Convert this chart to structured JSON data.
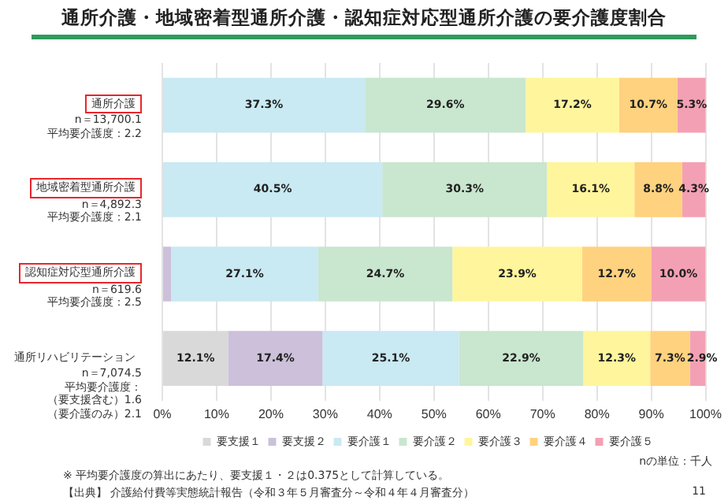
{
  "chart_data": {
    "type": "bar",
    "orientation": "horizontal",
    "stacked": true,
    "title": "通所介護・地域密着型通所介護・認知症対応型通所介護の要介護度割合",
    "categories": [
      "通所介護",
      "地域密着型通所介護",
      "認知症対応型通所介護",
      "通所リハビリテーション"
    ],
    "series": [
      {
        "name": "要支援１",
        "color": "#d9d9d9",
        "values": [
          null,
          null,
          null,
          12.1
        ],
        "value_labels": [
          null,
          null,
          null,
          "12.1%"
        ]
      },
      {
        "name": "要支援２",
        "color": "#ccc0da",
        "values": [
          null,
          null,
          1.6,
          17.4
        ],
        "value_labels": [
          null,
          null,
          null,
          "17.4%"
        ]
      },
      {
        "name": "要介護１",
        "color": "#c9e9f3",
        "values": [
          37.3,
          40.5,
          27.1,
          25.1
        ],
        "value_labels": [
          "37.3%",
          "40.5%",
          "27.1%",
          "25.1%"
        ]
      },
      {
        "name": "要介護２",
        "color": "#c9e6cf",
        "values": [
          29.6,
          30.3,
          24.7,
          22.9
        ],
        "value_labels": [
          "29.6%",
          "30.3%",
          "24.7%",
          "22.9%"
        ]
      },
      {
        "name": "要介護３",
        "color": "#fff59d",
        "values": [
          17.2,
          16.1,
          23.9,
          12.3
        ],
        "value_labels": [
          "17.2%",
          "16.1%",
          "23.9%",
          "12.3%"
        ]
      },
      {
        "name": "要介護４",
        "color": "#ffd27f",
        "values": [
          10.7,
          8.8,
          12.7,
          7.3
        ],
        "value_labels": [
          "10.7%",
          "8.8%",
          "12.7%",
          "7.3%"
        ]
      },
      {
        "name": "要介護５",
        "color": "#f4a0b4",
        "values": [
          5.3,
          4.3,
          10.0,
          2.9
        ],
        "value_labels": [
          "5.3%",
          "4.3%",
          "10.0%",
          "2.9%"
        ]
      }
    ],
    "xlim": [
      0,
      100
    ],
    "xticks": [
      {
        "value": 0,
        "label": "0%"
      },
      {
        "value": 10,
        "label": "10%"
      },
      {
        "value": 20,
        "label": "20%"
      },
      {
        "value": 30,
        "label": "30%"
      },
      {
        "value": 40,
        "label": "40%"
      },
      {
        "value": 50,
        "label": "50%"
      },
      {
        "value": 60,
        "label": "60%"
      },
      {
        "value": 70,
        "label": "70%"
      },
      {
        "value": 80,
        "label": "80%"
      },
      {
        "value": 90,
        "label": "90%"
      },
      {
        "value": 100,
        "label": "100%"
      }
    ],
    "grid": "x",
    "legend": "bottom",
    "annotations": [
      "n＝13,700.1",
      "平均要介護度：2.2",
      "n＝4,892.3",
      "平均要介護度：2.1",
      "n＝619.6",
      "平均要介護度：2.5",
      "n＝7,074.5",
      "平均要介護度：",
      "（要支援含む）1.6",
      "（要介護のみ）2.1",
      "nの単位：千人",
      "※ 平均要介護度の算出にあたり、要支援１・２は0.375として計算している。",
      "【出典】 介護給付費等実態統計報告（令和３年５月審査分～令和４年４月審査分）",
      "11"
    ]
  }
}
